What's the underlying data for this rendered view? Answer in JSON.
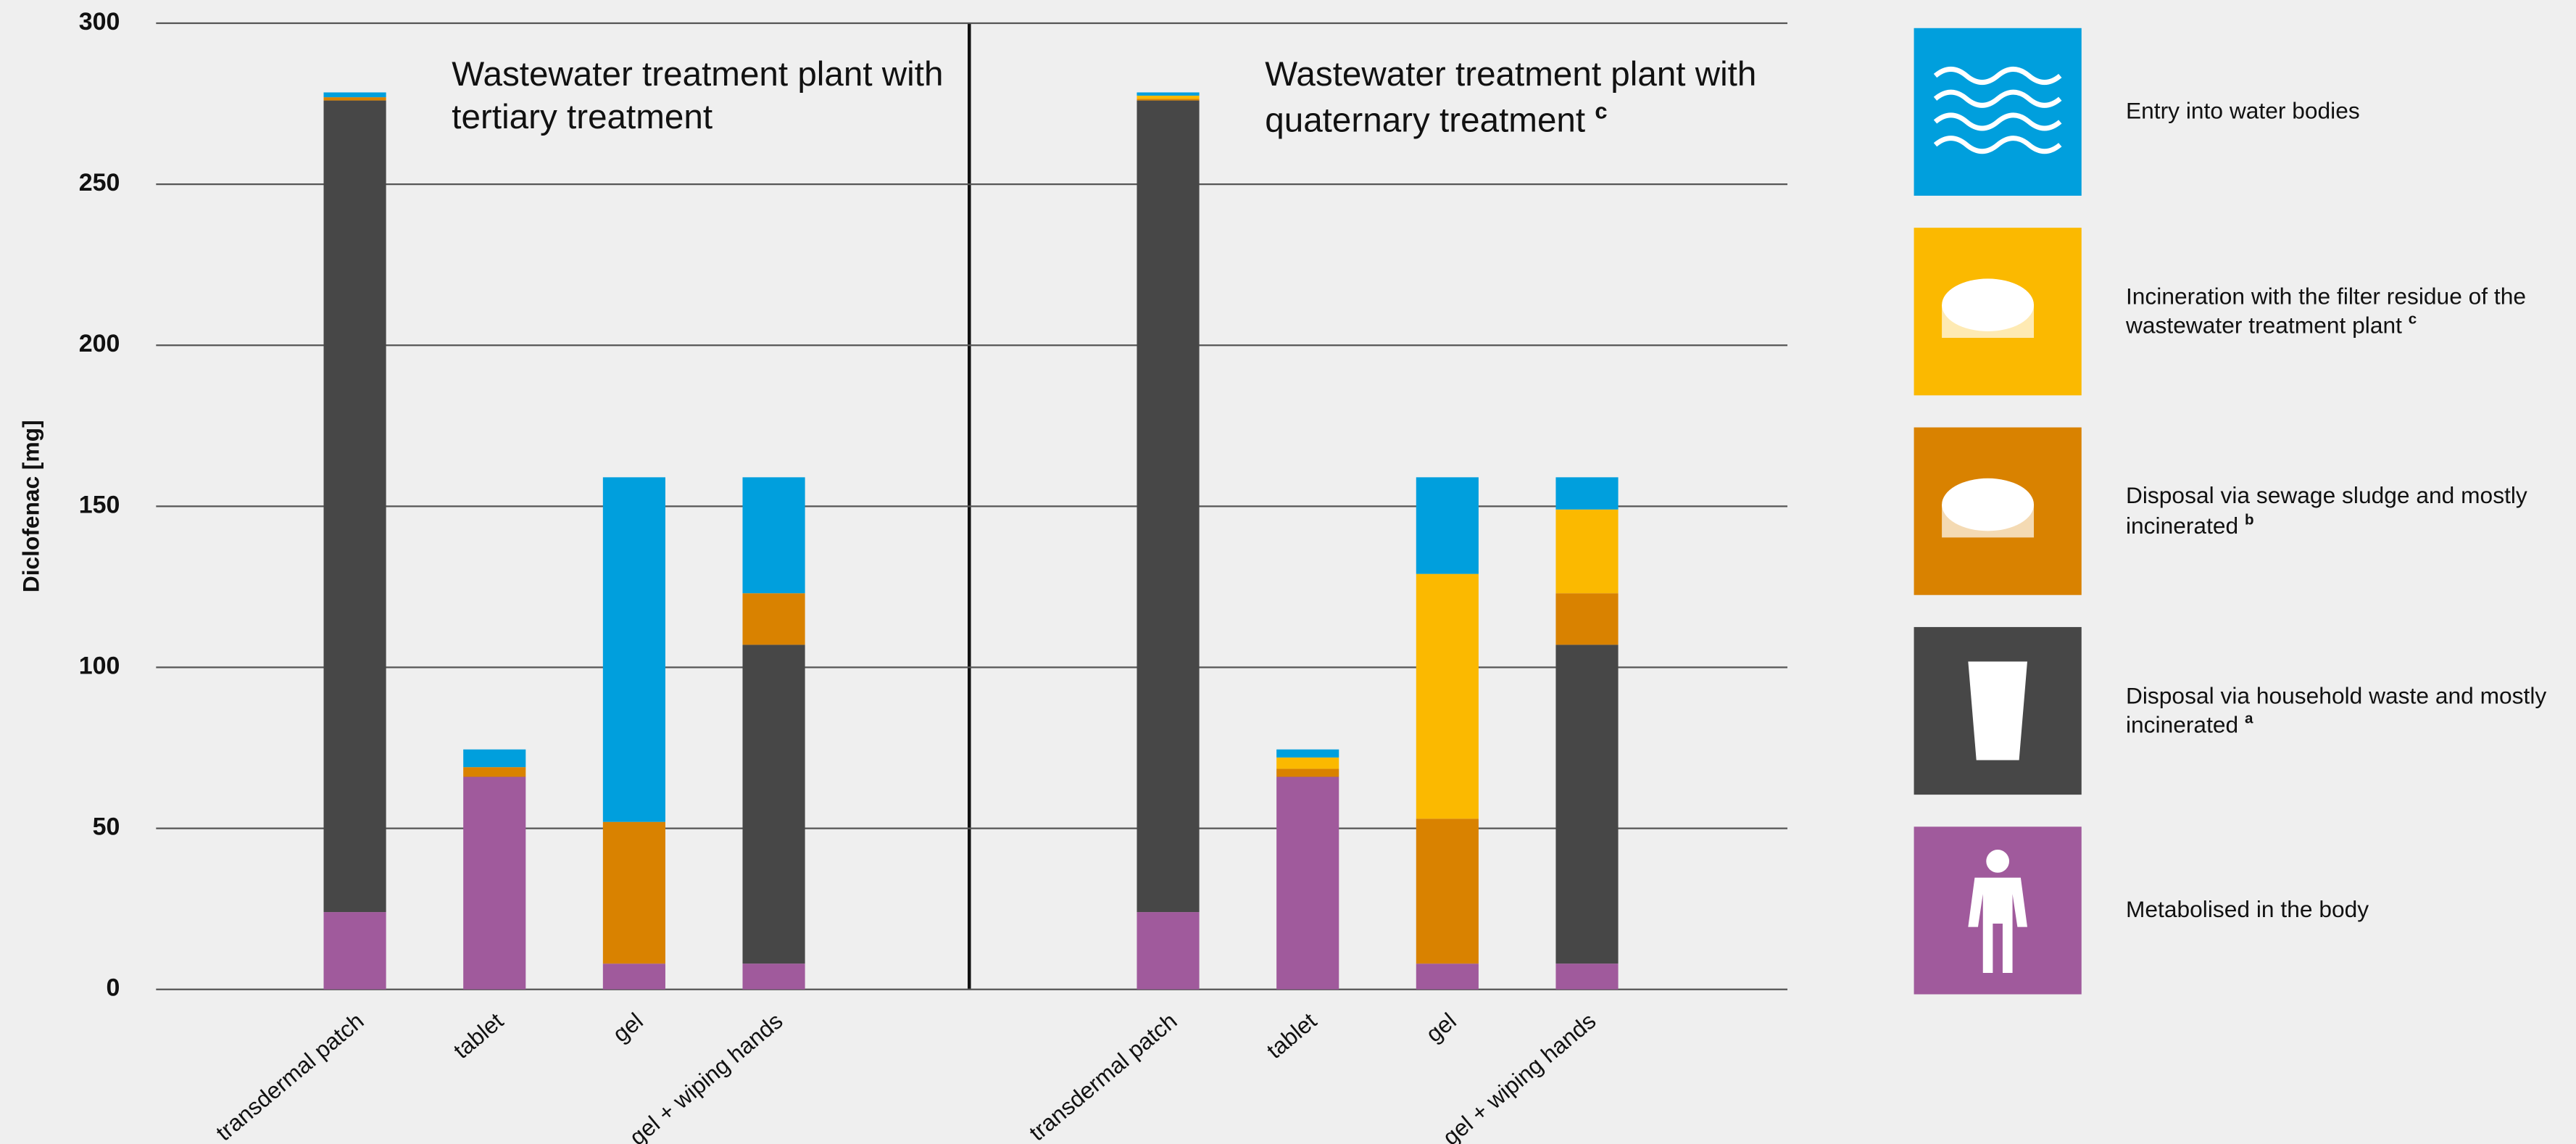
{
  "chart_data": {
    "type": "stacked-bar",
    "y_label": "Diclofenac [mg]",
    "ylim": [
      0,
      300
    ],
    "yticks": [
      0,
      50,
      100,
      150,
      200,
      250,
      300
    ],
    "grid": true,
    "legend": "right",
    "series": [
      {
        "name": "Metabolised in the body",
        "color": "#a05a9c"
      },
      {
        "name": "Disposal via household waste and mostly incinerated",
        "note": "a",
        "color": "#474747"
      },
      {
        "name": "Disposal via sewage sludge and mostly incinerated",
        "note": "b",
        "color": "#d98200"
      },
      {
        "name": "Incineration with the filter residue of the wastewater treatment plant",
        "note": "c",
        "color": "#fbb900"
      },
      {
        "name": "Entry into water bodies",
        "color": "#009fdd"
      }
    ],
    "panels": [
      {
        "title": "Wastewater treatment plant with tertiary treatment",
        "categories": [
          "transdermal patch",
          "tablet",
          "gel",
          "gel + wiping hands"
        ],
        "stacks": [
          [
            24,
            66,
            8,
            8
          ],
          [
            252,
            0,
            0,
            99
          ],
          [
            1,
            3,
            44,
            16
          ],
          [
            0,
            0,
            0,
            0
          ],
          [
            1.5,
            5.5,
            107,
            36
          ]
        ]
      },
      {
        "title": "Wastewater treatment plant with quaternary treatment",
        "note": "c",
        "categories": [
          "transdermal patch",
          "tablet",
          "gel",
          "gel + wiping hands"
        ],
        "stacks": [
          [
            24,
            66,
            8,
            8
          ],
          [
            252,
            0,
            0,
            99
          ],
          [
            0.5,
            2.5,
            45,
            16
          ],
          [
            1,
            3.5,
            76,
            26
          ],
          [
            1,
            2.5,
            30,
            10
          ]
        ]
      }
    ]
  }
}
